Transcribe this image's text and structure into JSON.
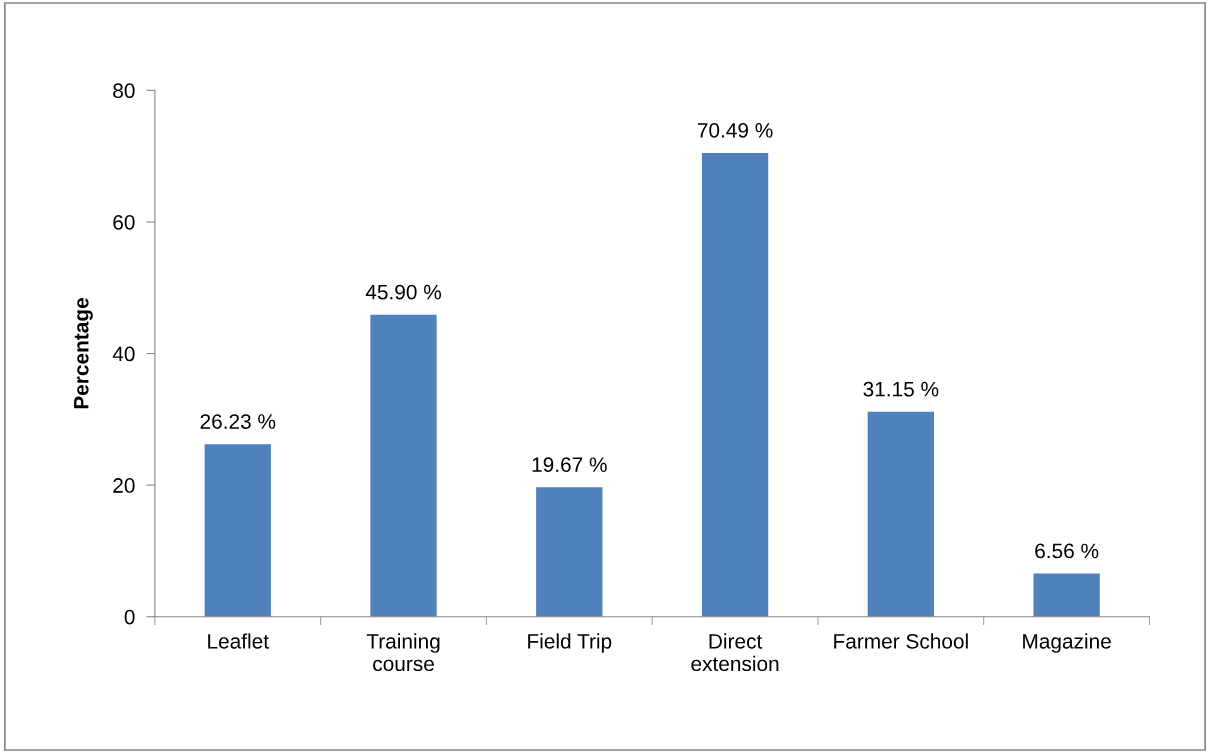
{
  "chart_data": {
    "type": "bar",
    "ylabel": "Percentage",
    "categories": [
      "Leaflet",
      "Training\ncourse",
      "Field Trip",
      "Direct\nextension",
      "Farmer School",
      "Magazine"
    ],
    "values": [
      26.23,
      45.9,
      19.67,
      70.49,
      31.15,
      6.56
    ],
    "value_labels": [
      "26.23 %",
      "45.90 %",
      "19.67 %",
      "70.49 %",
      "31.15 %",
      "6.56 %"
    ],
    "color": "#4f81bd",
    "ylim": [
      0,
      80
    ],
    "yticks": [
      0,
      20,
      40,
      60,
      80
    ],
    "grid": false,
    "legend": false
  }
}
